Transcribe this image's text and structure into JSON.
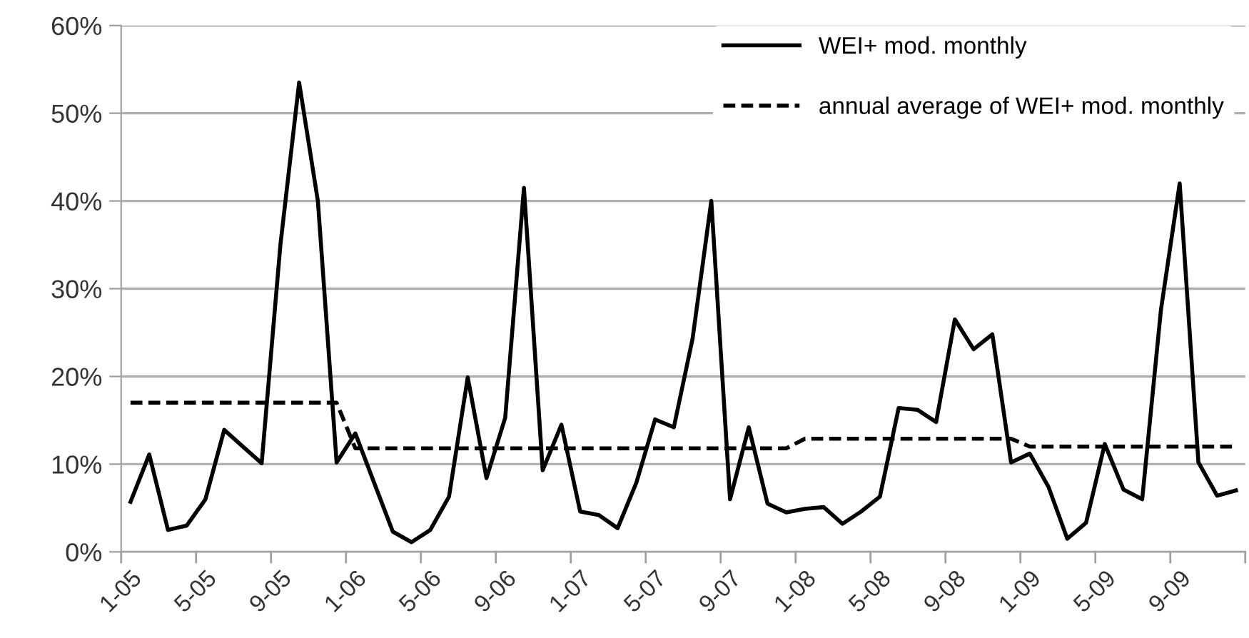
{
  "chart_data": {
    "type": "line",
    "categories": [
      "1-05",
      null,
      null,
      null,
      "5-05",
      null,
      null,
      null,
      "9-05",
      null,
      null,
      null,
      "1-06",
      null,
      null,
      null,
      "5-06",
      null,
      null,
      null,
      "9-06",
      null,
      null,
      null,
      "1-07",
      null,
      null,
      null,
      "5-07",
      null,
      null,
      null,
      "9-07",
      null,
      null,
      null,
      "1-08",
      null,
      null,
      null,
      "5-08",
      null,
      null,
      null,
      "9-08",
      null,
      null,
      null,
      "1-09",
      null,
      null,
      null,
      "5-09",
      null,
      null,
      null,
      "9-09",
      null,
      null,
      null
    ],
    "series": [
      {
        "name": "WEI+ mod. monthly",
        "color": "#000000",
        "line_style": "solid",
        "values": [
          0.057,
          0.111,
          0.025,
          0.03,
          0.06,
          0.139,
          0.12,
          0.101,
          0.35,
          0.535,
          0.4,
          0.102,
          0.135,
          0.079,
          0.023,
          0.011,
          0.025,
          0.063,
          0.199,
          0.084,
          0.153,
          0.415,
          0.093,
          0.145,
          0.046,
          0.042,
          0.027,
          0.079,
          0.151,
          0.142,
          0.243,
          0.4,
          0.06,
          0.142,
          0.055,
          0.045,
          0.049,
          0.051,
          0.032,
          0.046,
          0.063,
          0.164,
          0.162,
          0.148,
          0.265,
          0.231,
          0.248,
          0.102,
          0.112,
          0.074,
          0.015,
          0.033,
          0.123,
          0.071,
          0.06,
          0.276,
          0.42,
          0.102,
          0.064,
          0.07
        ]
      },
      {
        "name": "annual average of WEI+ mod. monthly",
        "color": "#000000",
        "line_style": "dashed",
        "values": [
          0.17,
          0.17,
          0.17,
          0.17,
          0.17,
          0.17,
          0.17,
          0.17,
          0.17,
          0.17,
          0.17,
          0.17,
          0.118,
          0.118,
          0.118,
          0.118,
          0.118,
          0.118,
          0.118,
          0.118,
          0.118,
          0.118,
          0.118,
          0.118,
          0.118,
          0.118,
          0.118,
          0.118,
          0.118,
          0.118,
          0.118,
          0.118,
          0.118,
          0.118,
          0.118,
          0.118,
          0.129,
          0.129,
          0.129,
          0.129,
          0.129,
          0.129,
          0.129,
          0.129,
          0.129,
          0.129,
          0.129,
          0.129,
          0.12,
          0.12,
          0.12,
          0.12,
          0.12,
          0.12,
          0.12,
          0.12,
          0.12,
          0.12,
          0.12,
          0.12
        ]
      }
    ],
    "ylim": [
      0,
      0.6
    ],
    "yticks": [
      {
        "value": 0,
        "label": "0%"
      },
      {
        "value": 0.1,
        "label": "10%"
      },
      {
        "value": 0.2,
        "label": "20%"
      },
      {
        "value": 0.3,
        "label": "30%"
      },
      {
        "value": 0.4,
        "label": "40%"
      },
      {
        "value": 0.5,
        "label": "50%"
      },
      {
        "value": 0.6,
        "label": "60%"
      }
    ],
    "grid": "y",
    "legend": "top right",
    "marker": "none"
  }
}
